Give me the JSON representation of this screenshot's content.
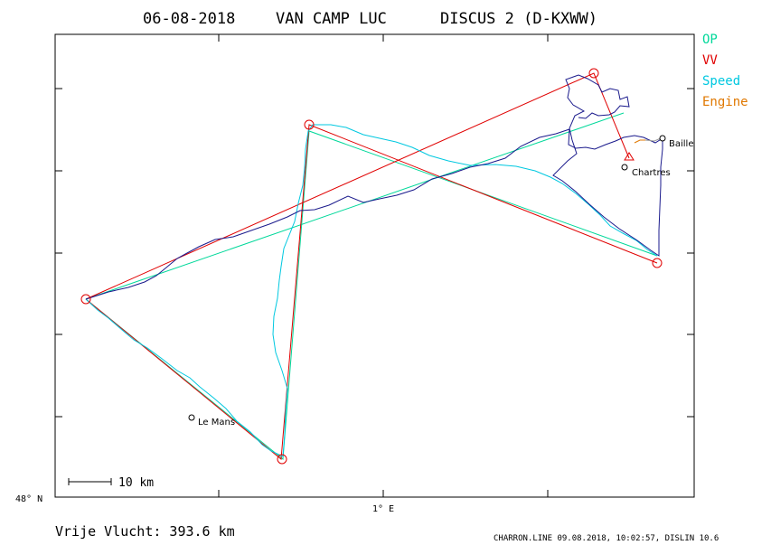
{
  "header": {
    "date": "06-08-2018",
    "pilot": "VAN CAMP LUC",
    "glider": "DISCUS 2 (D-KXWW)"
  },
  "legend": {
    "items": [
      {
        "label": "OP",
        "color": "#00d89a"
      },
      {
        "label": "VV",
        "color": "#e00000"
      },
      {
        "label": "Speed",
        "color": "#00c8e0"
      },
      {
        "label": "Engine",
        "color": "#e07800"
      }
    ]
  },
  "axes": {
    "lat_label": "48° N",
    "lon_label": "1° E"
  },
  "places": [
    {
      "name": "Le Mans"
    },
    {
      "name": "Chartres"
    },
    {
      "name": "Baille"
    }
  ],
  "scale": {
    "label": "10  km"
  },
  "summary": {
    "distance_text": "Vrije Vlucht:  393.6 km"
  },
  "footer": {
    "credit": "CHARRON.LINE 09.08.2018, 10:02:57, DISLIN 10.6"
  },
  "colors": {
    "track": "#1a1a8c",
    "speed_track": "#00c8e0",
    "op": "#00d89a",
    "vv": "#e00000",
    "frame": "#000000"
  }
}
